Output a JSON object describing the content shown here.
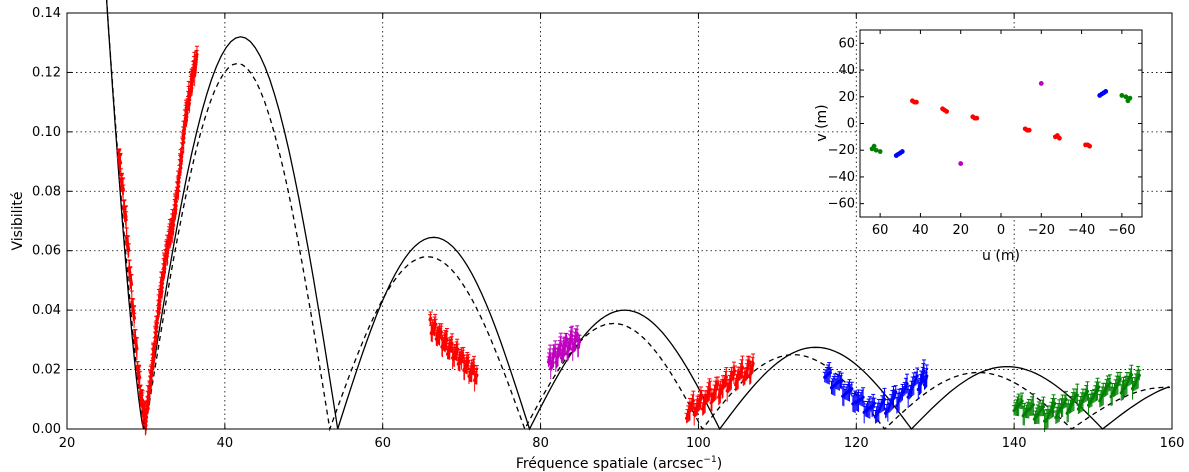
{
  "chart_data": [
    {
      "type": "scatter",
      "title": "",
      "xlabel": "Fréquence spatiale (arcsec",
      "xlabel_unit_superscript": "−1",
      "xlabel_close": ")",
      "ylabel": "Visibilité",
      "xlim": [
        20,
        160
      ],
      "ylim": [
        0,
        0.14
      ],
      "grid": true,
      "x_ticks": [
        "20",
        "40",
        "60",
        "80",
        "100",
        "120",
        "140",
        "160"
      ],
      "y_ticks": [
        "0.00",
        "0.02",
        "0.04",
        "0.06",
        "0.08",
        "0.10",
        "0.12",
        "0.14"
      ],
      "model_curves": {
        "solid": {
          "style": "solid",
          "zeros": [
            29.7,
            54.3,
            78.6,
            102.7,
            127.0,
            151.2
          ],
          "peaks": [
            0.132,
            0.0645,
            0.04,
            0.0275,
            0.021,
            0.016
          ],
          "peak_x": [
            40,
            65,
            90,
            114.5,
            139,
            163
          ]
        },
        "dashed": {
          "style": "dashed",
          "zeros": [
            29.9,
            53.3,
            78.0,
            100.5,
            123.6,
            147.3
          ],
          "peaks": [
            0.123,
            0.058,
            0.0355,
            0.025,
            0.019,
            0.014
          ],
          "peak_x": [
            40,
            64,
            88,
            112,
            136,
            159
          ]
        }
      },
      "series": [
        {
          "color": "#ff0000",
          "segments": [
            {
              "x": [
                26.5,
                27,
                27.5,
                28,
                28.5,
                29,
                29.5,
                30,
                30.5,
                31,
                31.5,
                32,
                32.5,
                33,
                33.5,
                34,
                34.5,
                35,
                35.5,
                36,
                36.5
              ],
              "y": [
                0.094,
                0.082,
                0.068,
                0.052,
                0.036,
                0.02,
                0.008,
                0.003,
                0.014,
                0.026,
                0.038,
                0.048,
                0.058,
                0.064,
                0.07,
                0.08,
                0.092,
                0.104,
                0.112,
                0.12,
                0.124
              ]
            },
            {
              "x": [
                98.5,
                100,
                101.5,
                103,
                104.5,
                106,
                107
              ],
              "y": [
                0.006,
                0.008,
                0.011,
                0.014,
                0.017,
                0.019,
                0.021
              ]
            }
          ]
        },
        {
          "color": "#ff0000",
          "segments": [
            {
              "x": [
                66,
                67,
                68,
                69,
                70,
                71,
                72
              ],
              "y": [
                0.035,
                0.032,
                0.028,
                0.026,
                0.023,
                0.02,
                0.018
              ]
            }
          ]
        },
        {
          "color": "#bf00bf",
          "segments": [
            {
              "x": [
                81,
                82,
                83,
                84,
                85
              ],
              "y": [
                0.022,
                0.025,
                0.027,
                0.029,
                0.03
              ]
            }
          ]
        },
        {
          "color": "#0000ff",
          "segments": [
            {
              "x": [
                116,
                118,
                120,
                122,
                124,
                126,
                128,
                129
              ],
              "y": [
                0.018,
                0.014,
                0.01,
                0.006,
                0.008,
                0.012,
                0.016,
                0.018
              ]
            }
          ]
        },
        {
          "color": "#008000",
          "segments": [
            {
              "x": [
                140,
                142,
                144,
                146,
                148,
                150,
                152,
                154,
                156
              ],
              "y": [
                0.008,
                0.006,
                0.005,
                0.007,
                0.009,
                0.011,
                0.013,
                0.015,
                0.017
              ]
            }
          ]
        }
      ]
    },
    {
      "type": "scatter",
      "title": "",
      "xlabel": "u (m)",
      "ylabel": "v (m)",
      "xlim": [
        70,
        -70
      ],
      "ylim": [
        -70,
        70
      ],
      "x_ticks": [
        "60",
        "40",
        "20",
        "0",
        "−20",
        "−40",
        "−60"
      ],
      "x_tick_values": [
        60,
        40,
        20,
        0,
        -20,
        -40,
        -60
      ],
      "y_ticks": [
        "60",
        "40",
        "20",
        "0",
        "−20",
        "−40",
        "−60"
      ],
      "y_tick_values": [
        60,
        40,
        20,
        0,
        -20,
        -40,
        -60
      ],
      "points": [
        {
          "color": "#ff0000",
          "u": [
            42,
            43,
            44,
            28,
            27,
            29,
            14,
            13,
            12,
            -13,
            -12,
            -14,
            -27,
            -28,
            -29,
            -42,
            -43,
            -44
          ],
          "v": [
            16,
            16,
            17,
            10,
            9,
            11,
            5,
            4,
            4,
            -5,
            -4,
            -5,
            -10,
            -9,
            -11,
            -16,
            -16,
            -17
          ]
        },
        {
          "color": "#bf00bf",
          "u": [
            -20,
            20
          ],
          "v": [
            30,
            -30
          ]
        },
        {
          "color": "#0000ff",
          "u": [
            -50,
            -51,
            -52,
            -49,
            50,
            51,
            52,
            49
          ],
          "v": [
            22,
            23,
            24,
            21,
            -22,
            -23,
            -24,
            -21
          ]
        },
        {
          "color": "#008000",
          "u": [
            -60,
            -62,
            -63,
            -64,
            60,
            62,
            63,
            64
          ],
          "v": [
            21,
            20,
            17,
            19,
            -21,
            -20,
            -17,
            -19
          ]
        }
      ]
    }
  ]
}
